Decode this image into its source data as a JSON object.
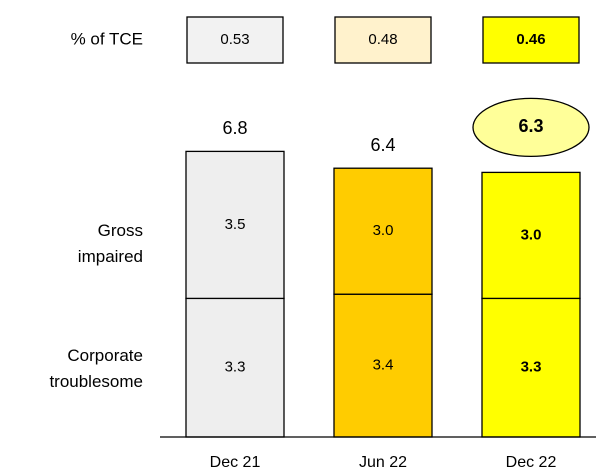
{
  "chart_data": {
    "type": "stacked_bar",
    "categories": [
      "Dec 21",
      "Jun 22",
      "Dec 22"
    ],
    "colors": [
      "#eeeeee",
      "#ffcc00",
      "#ffff00"
    ],
    "series": [
      {
        "name": "Corporate troublesome",
        "values": [
          3.3,
          3.4,
          3.3
        ],
        "value_labels": [
          "3.3",
          "3.4",
          "3.3"
        ]
      },
      {
        "name": "Gross impaired",
        "values": [
          3.5,
          3.0,
          3.0
        ],
        "value_labels": [
          "3.5",
          "3.0",
          "3.0"
        ]
      }
    ],
    "totals": [
      6.8,
      6.4,
      6.3
    ],
    "tce": {
      "label": "% of TCE",
      "values": [
        0.53,
        0.48,
        0.46
      ],
      "colors": [
        "#f2f2f2",
        "#fff2cc",
        "#ffff00"
      ]
    }
  }
}
